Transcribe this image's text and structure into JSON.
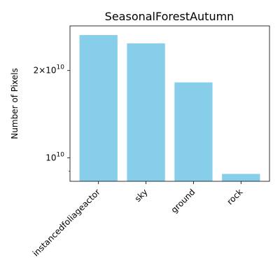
{
  "chart_data": {
    "type": "bar",
    "title": "SeasonalForestAutumn",
    "xlabel": "",
    "ylabel": "Number of Pixels",
    "categories": [
      "instancedfoliageactor",
      "sky",
      "ground",
      "rock"
    ],
    "values": [
      26500000000,
      24800000000,
      18200000000,
      8800000000
    ],
    "yscale": "log",
    "ylim": [
      8300000000,
      28500000000
    ],
    "y_major_ticks": [
      {
        "value": 10000000000,
        "label": "10^10"
      },
      {
        "value": 20000000000,
        "label": "2×10^10"
      }
    ],
    "grid": false,
    "colors": {
      "bar": "#87ceeb"
    }
  }
}
